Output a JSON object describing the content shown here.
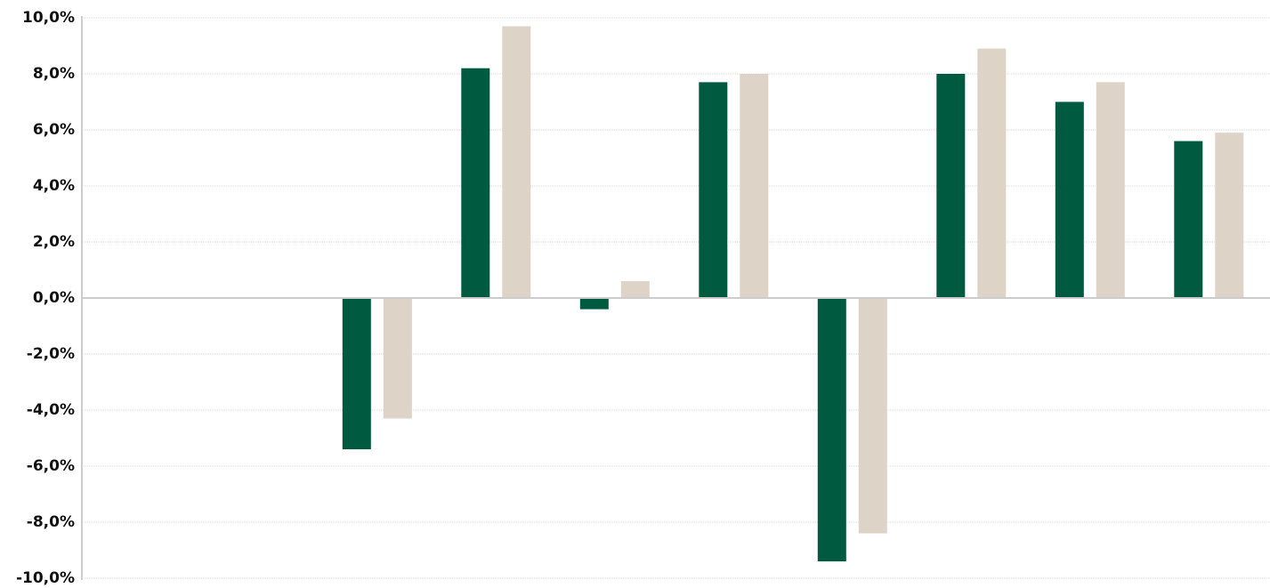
{
  "chart_data": {
    "type": "bar",
    "title": "",
    "xlabel": "",
    "ylabel": "",
    "ylim": [
      -10,
      10
    ],
    "ytick_step": 2,
    "ytick_labels": [
      "10,0%",
      "8,0%",
      "6,0%",
      "4,0%",
      "2,0%",
      "0,0%",
      "-2,0%",
      "-4,0%",
      "-6,0%",
      "-8,0%",
      "-10,0%"
    ],
    "category_count": 10,
    "grid": true,
    "legend": "none",
    "series": [
      {
        "color": "#005a40",
        "values": [
          null,
          null,
          -5.4,
          8.2,
          -0.4,
          7.7,
          -9.4,
          8.0,
          7.0,
          5.6
        ]
      },
      {
        "color": "#ddd3c7",
        "values": [
          null,
          null,
          -4.3,
          9.7,
          0.6,
          8.0,
          -8.4,
          8.9,
          7.7,
          5.9
        ]
      }
    ]
  }
}
